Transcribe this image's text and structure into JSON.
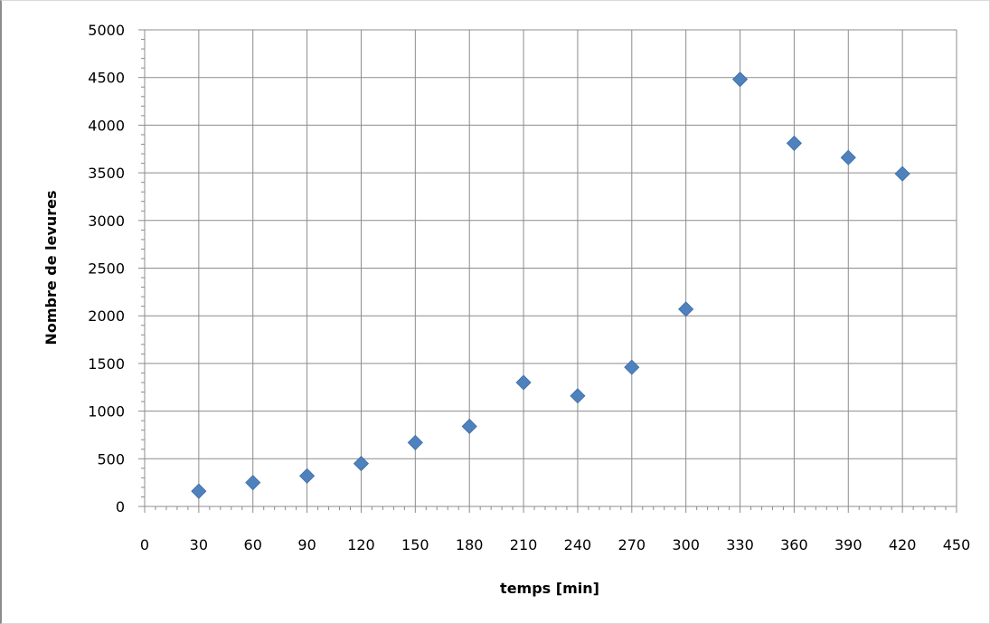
{
  "chart_data": {
    "type": "scatter",
    "title": "",
    "xlabel": "temps [min]",
    "ylabel": "Nombre de levures",
    "xlim": [
      0,
      450
    ],
    "ylim": [
      0,
      5000
    ],
    "x_major_step": 30,
    "y_major_step": 500,
    "x_tick_labels": [
      "0",
      "30",
      "60",
      "90",
      "120",
      "150",
      "180",
      "210",
      "240",
      "270",
      "300",
      "330",
      "360",
      "390",
      "420",
      "450"
    ],
    "y_tick_labels": [
      "0",
      "500",
      "1000",
      "1500",
      "2000",
      "2500",
      "3000",
      "3500",
      "4000",
      "4500",
      "5000"
    ],
    "grid": true,
    "legend": "none",
    "marker": "diamond",
    "marker_color": "#4f81bd",
    "grid_color": "#8c8c8c",
    "series": [
      {
        "x": [
          30,
          60,
          90,
          120,
          150,
          180,
          210,
          240,
          270,
          300,
          330,
          360,
          390,
          420
        ],
        "y": [
          160,
          250,
          320,
          450,
          670,
          840,
          1300,
          1160,
          1460,
          2070,
          4480,
          3810,
          3660,
          3490
        ]
      }
    ]
  }
}
